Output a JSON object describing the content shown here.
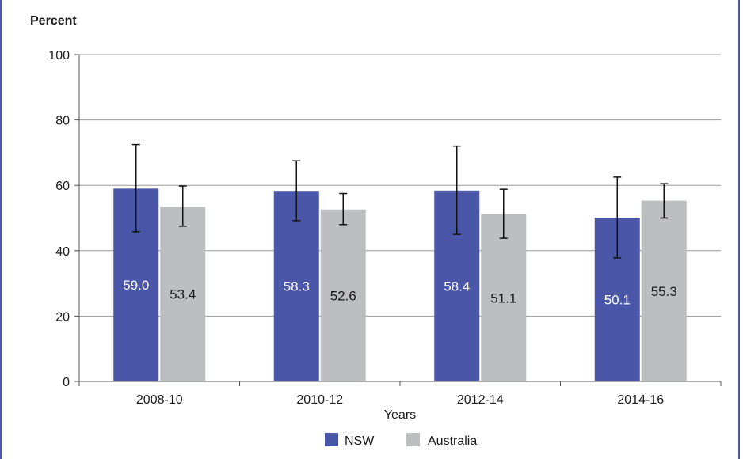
{
  "chart_data": {
    "type": "bar",
    "title": "",
    "ylabel": "Percent",
    "xlabel": "Years",
    "ylim": [
      0,
      100
    ],
    "yticks": [
      0,
      20,
      40,
      60,
      80,
      100
    ],
    "grid": true,
    "legend_position": "bottom",
    "categories": [
      "2008-10",
      "2010-12",
      "2012-14",
      "2014-16"
    ],
    "series": [
      {
        "name": "NSW",
        "color": "#4a57a8",
        "label_color": "#ffffff",
        "values": [
          59.0,
          58.3,
          58.4,
          50.1
        ],
        "value_labels": [
          "59.0",
          "58.3",
          "58.4",
          "50.1"
        ],
        "ci_lower": [
          45.8,
          49.2,
          45.0,
          37.8
        ],
        "ci_upper": [
          72.5,
          67.5,
          72.0,
          62.5
        ]
      },
      {
        "name": "Australia",
        "color": "#bdbec0",
        "label_color": "#1a1a1a",
        "values": [
          53.4,
          52.6,
          51.1,
          55.3
        ],
        "value_labels": [
          "53.4",
          "52.6",
          "51.1",
          "55.3"
        ],
        "ci_lower": [
          47.5,
          48.0,
          43.8,
          50.0
        ],
        "ci_upper": [
          59.8,
          57.5,
          58.8,
          60.5
        ]
      }
    ]
  }
}
